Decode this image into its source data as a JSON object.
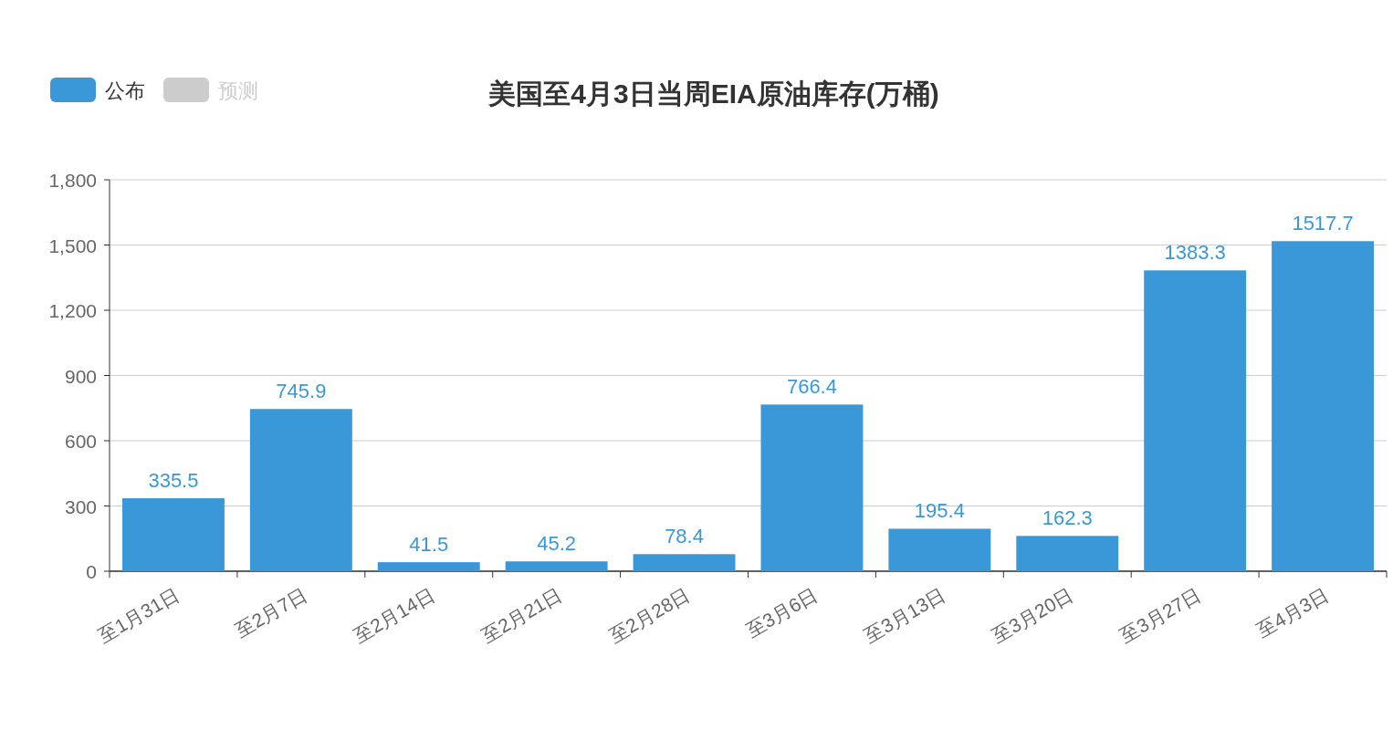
{
  "chart_data": {
    "type": "bar",
    "title": "美国至4月3日当周EIA原油库存(万桶)",
    "categories": [
      "至1月31日",
      "至2月7日",
      "至2月14日",
      "至2月21日",
      "至2月28日",
      "至3月6日",
      "至3月13日",
      "至3月20日",
      "至3月27日",
      "至4月3日"
    ],
    "series": [
      {
        "name": "公布",
        "color": "#3a98d9",
        "values": [
          335.5,
          745.9,
          41.5,
          45.2,
          78.4,
          766.4,
          195.4,
          162.3,
          1383.3,
          1517.7
        ]
      },
      {
        "name": "预测",
        "color": "#cccccc",
        "values": [
          null,
          null,
          null,
          null,
          null,
          null,
          null,
          null,
          null,
          null
        ]
      }
    ],
    "ylim": [
      0,
      1800
    ],
    "yticks": [
      0,
      300,
      600,
      900,
      {
        "value": 1200,
        "label": "1,200"
      },
      {
        "value": 1500,
        "label": "1,500"
      },
      {
        "value": 1800,
        "label": "1,800"
      }
    ],
    "grid": "y",
    "legend": "top left",
    "data_labels": true
  }
}
